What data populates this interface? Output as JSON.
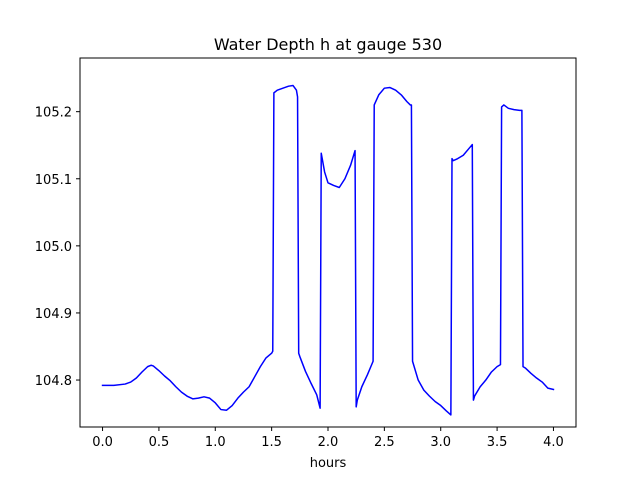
{
  "chart_data": {
    "type": "line",
    "title": "Water Depth h at gauge 530",
    "xlabel": "hours",
    "ylabel": "",
    "xlim": [
      -0.2,
      4.2
    ],
    "ylim": [
      104.73,
      105.28
    ],
    "grid": false,
    "legend": "none",
    "x_ticks": [
      0.0,
      0.5,
      1.0,
      1.5,
      2.0,
      2.5,
      3.0,
      3.5,
      4.0
    ],
    "x_tick_labels": [
      "0.0",
      "0.5",
      "1.0",
      "1.5",
      "2.0",
      "2.5",
      "3.0",
      "3.5",
      "4.0"
    ],
    "y_ticks": [
      104.8,
      104.9,
      105.0,
      105.1,
      105.2
    ],
    "y_tick_labels": [
      "104.8",
      "104.9",
      "105.0",
      "105.1",
      "105.2"
    ],
    "series": [
      {
        "color": "#0000ff",
        "x": [
          0.0,
          0.1,
          0.2,
          0.25,
          0.3,
          0.35,
          0.4,
          0.43,
          0.45,
          0.5,
          0.55,
          0.6,
          0.65,
          0.7,
          0.75,
          0.8,
          0.85,
          0.9,
          0.95,
          1.0,
          1.05,
          1.1,
          1.15,
          1.2,
          1.25,
          1.3,
          1.35,
          1.4,
          1.45,
          1.5,
          1.51,
          1.52,
          1.55,
          1.6,
          1.65,
          1.69,
          1.72,
          1.73,
          1.74,
          1.75,
          1.8,
          1.85,
          1.9,
          1.93,
          1.94,
          1.97,
          2.0,
          2.05,
          2.1,
          2.15,
          2.2,
          2.24,
          2.25,
          2.26,
          2.3,
          2.35,
          2.38,
          2.4,
          2.41,
          2.45,
          2.5,
          2.55,
          2.6,
          2.65,
          2.7,
          2.73,
          2.74,
          2.75,
          2.8,
          2.85,
          2.9,
          2.95,
          3.0,
          3.05,
          3.09,
          3.1,
          3.11,
          3.15,
          3.2,
          3.25,
          3.28,
          3.29,
          3.3,
          3.35,
          3.4,
          3.45,
          3.5,
          3.53,
          3.54,
          3.56,
          3.6,
          3.65,
          3.7,
          3.72,
          3.73,
          3.75,
          3.8,
          3.85,
          3.9,
          3.95,
          4.0
        ],
        "y": [
          104.792,
          104.792,
          104.794,
          104.797,
          104.803,
          104.812,
          104.82,
          104.822,
          104.821,
          104.814,
          104.806,
          104.799,
          104.79,
          104.782,
          104.776,
          104.772,
          104.773,
          104.775,
          104.773,
          104.766,
          104.756,
          104.755,
          104.762,
          104.773,
          104.782,
          104.79,
          104.805,
          104.82,
          104.833,
          104.84,
          104.843,
          105.228,
          105.232,
          105.235,
          105.238,
          105.239,
          105.232,
          105.222,
          104.84,
          104.835,
          104.813,
          104.795,
          104.778,
          104.758,
          105.138,
          105.11,
          105.094,
          105.09,
          105.087,
          105.1,
          105.12,
          105.142,
          104.76,
          104.77,
          104.79,
          104.808,
          104.82,
          104.828,
          105.21,
          105.225,
          105.235,
          105.236,
          105.232,
          105.225,
          105.215,
          105.21,
          105.21,
          104.828,
          104.8,
          104.785,
          104.776,
          104.768,
          104.762,
          104.754,
          104.748,
          105.13,
          105.127,
          105.13,
          105.135,
          105.145,
          105.151,
          104.77,
          104.776,
          104.79,
          104.8,
          104.812,
          104.82,
          104.823,
          105.207,
          105.21,
          105.205,
          105.203,
          105.202,
          105.202,
          104.82,
          104.818,
          104.81,
          104.803,
          104.797,
          104.788,
          104.786
        ]
      }
    ]
  }
}
